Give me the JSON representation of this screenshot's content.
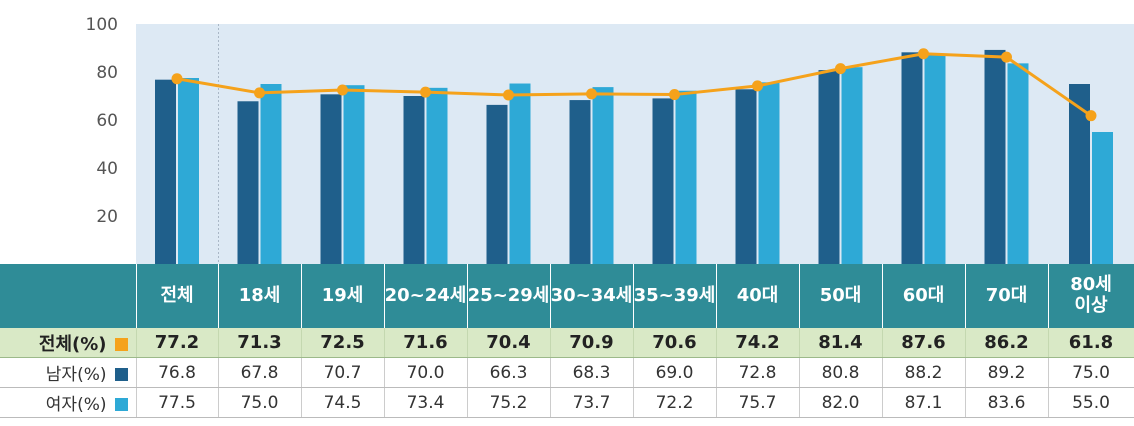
{
  "chart_data": {
    "type": "bar",
    "categories": [
      "전체",
      "18세",
      "19세",
      "20~24세",
      "25~29세",
      "30~34세",
      "35~39세",
      "40대",
      "50대",
      "60대",
      "70대",
      "80세\n이상"
    ],
    "series": [
      {
        "name": "전체(%)",
        "kind": "line",
        "color": "#f5a21b",
        "values": [
          77.2,
          71.3,
          72.5,
          71.6,
          70.4,
          70.9,
          70.6,
          74.2,
          81.4,
          87.6,
          86.2,
          61.8
        ],
        "display": [
          "77.2",
          "71.3",
          "72.5",
          "71.6",
          "70.4",
          "70.9",
          "70.6",
          "74.2",
          "81.4",
          "87.6",
          "86.2",
          "61.8"
        ]
      },
      {
        "name": "남자(%)",
        "kind": "bar",
        "color": "#1f5f8b",
        "values": [
          76.8,
          67.8,
          70.7,
          70.0,
          66.3,
          68.3,
          69.0,
          72.8,
          80.8,
          88.2,
          89.2,
          75.0
        ],
        "display": [
          "76.8",
          "67.8",
          "70.7",
          "70.0",
          "66.3",
          "68.3",
          "69.0",
          "72.8",
          "80.8",
          "88.2",
          "89.2",
          "75.0"
        ]
      },
      {
        "name": "여자(%)",
        "kind": "bar",
        "color": "#2ea9d6",
        "values": [
          77.5,
          75.0,
          74.5,
          73.4,
          75.2,
          73.7,
          72.2,
          75.7,
          82.0,
          87.1,
          83.6,
          55.0
        ],
        "display": [
          "77.5",
          "75.0",
          "74.5",
          "73.4",
          "75.2",
          "73.7",
          "72.2",
          "75.7",
          "82.0",
          "87.1",
          "83.6",
          "55.0"
        ]
      }
    ],
    "yticks": [
      "100",
      "80",
      "60",
      "40",
      "20"
    ],
    "ylim": [
      0,
      100
    ],
    "grid": false,
    "title": "",
    "xlabel": "",
    "ylabel": ""
  },
  "colors": {
    "plot_bg": "#dde9f4",
    "header_bg": "#2f8c97",
    "total_row_bg": "#d9e9c6"
  }
}
